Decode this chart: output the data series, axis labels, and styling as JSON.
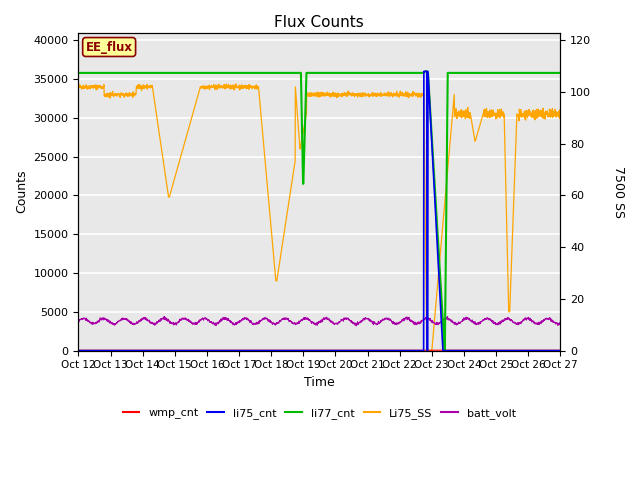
{
  "title": "Flux Counts",
  "xlabel": "Time",
  "ylabel_left": "Counts",
  "ylabel_right": "7500 SS",
  "annotation_text": "EE_flux",
  "annotation_color": "#8B0000",
  "annotation_bg": "#FFFF99",
  "annotation_border": "#8B0000",
  "ylim_left": [
    0,
    41000
  ],
  "ylim_right": [
    0,
    123
  ],
  "yticks_left": [
    0,
    5000,
    10000,
    15000,
    20000,
    25000,
    30000,
    35000,
    40000
  ],
  "yticks_right": [
    0,
    20,
    40,
    60,
    80,
    100,
    120
  ],
  "bg_color": "#E8E8E8",
  "grid_color": "white",
  "legend_items": [
    {
      "label": "wmp_cnt",
      "color": "#FF0000"
    },
    {
      "label": "li75_cnt",
      "color": "#0000EE"
    },
    {
      "label": "li77_cnt",
      "color": "#00BB00"
    },
    {
      "label": "Li75_SS",
      "color": "#FFA500"
    },
    {
      "label": "batt_volt",
      "color": "#AA00AA"
    }
  ],
  "xtick_labels": [
    "Oct 12",
    "Oct 13",
    "Oct 14",
    "Oct 15",
    "Oct 16",
    "Oct 17",
    "Oct 18",
    "Oct 19",
    "Oct 20",
    "Oct 21",
    "Oct 22",
    "Oct 23",
    "Oct 24",
    "Oct 25",
    "Oct 26",
    "Oct 27"
  ],
  "num_points": 2000,
  "figsize": [
    6.4,
    4.8
  ],
  "dpi": 100
}
